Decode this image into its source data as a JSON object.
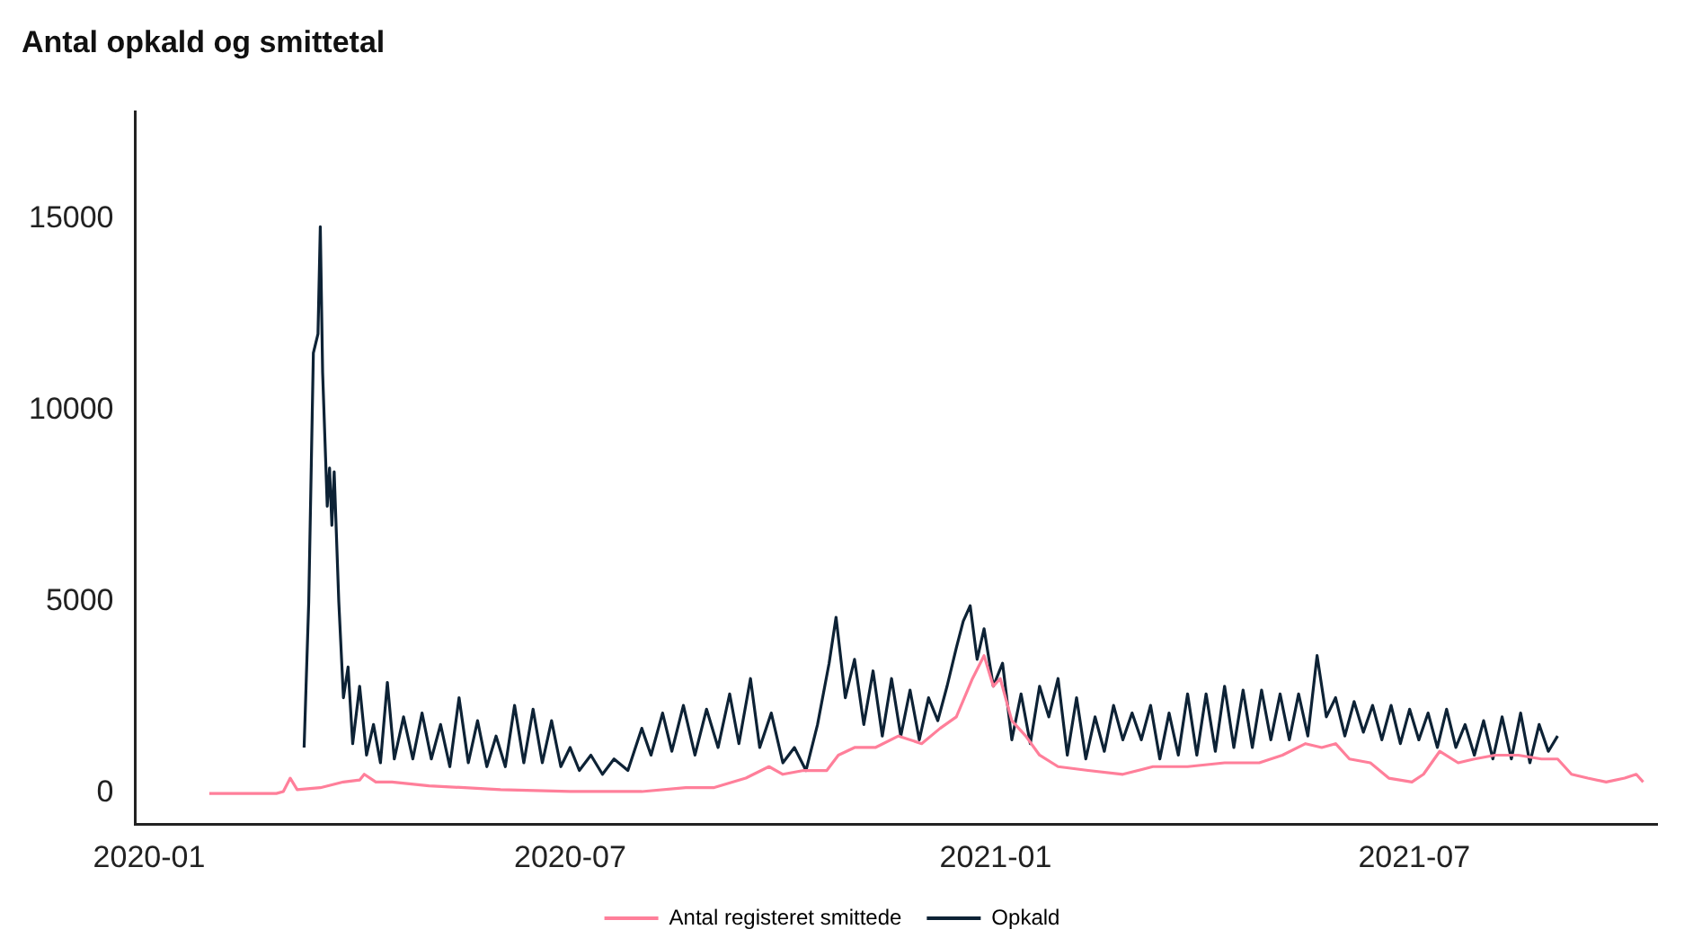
{
  "chart_data": {
    "type": "line",
    "title": "Antal opkald og smittetal",
    "legend": "bottom",
    "grid": false,
    "marker": "none",
    "line_style": "solid",
    "xlim": [
      "2019-12-26",
      "2021-10-14"
    ],
    "xticks": [
      {
        "value": "2020-01-01",
        "label": "2020-01"
      },
      {
        "value": "2020-07-01",
        "label": "2020-07"
      },
      {
        "value": "2021-01-01",
        "label": "2021-01"
      },
      {
        "value": "2021-07-01",
        "label": "2021-07"
      }
    ],
    "ylim": [
      -800,
      17800
    ],
    "yticks": [
      0,
      5000,
      10000,
      15000
    ],
    "series": [
      {
        "name": "Antal registeret smittede",
        "color": "#ff7f9a",
        "x": [
          "2020-01-27",
          "2020-02-25",
          "2020-02-28",
          "2020-03-02",
          "2020-03-05",
          "2020-03-15",
          "2020-03-25",
          "2020-04-01",
          "2020-04-03",
          "2020-04-08",
          "2020-04-15",
          "2020-05-01",
          "2020-06-01",
          "2020-07-01",
          "2020-08-01",
          "2020-08-20",
          "2020-09-01",
          "2020-09-15",
          "2020-09-25",
          "2020-10-01",
          "2020-10-10",
          "2020-10-20",
          "2020-10-25",
          "2020-11-01",
          "2020-11-10",
          "2020-11-20",
          "2020-11-30",
          "2020-12-08",
          "2020-12-15",
          "2020-12-22",
          "2020-12-27",
          "2020-12-31",
          "2021-01-03",
          "2021-01-08",
          "2021-01-14",
          "2021-01-20",
          "2021-01-28",
          "2021-02-10",
          "2021-02-25",
          "2021-03-10",
          "2021-03-25",
          "2021-04-10",
          "2021-04-25",
          "2021-05-05",
          "2021-05-15",
          "2021-05-22",
          "2021-05-28",
          "2021-06-03",
          "2021-06-12",
          "2021-06-20",
          "2021-06-30",
          "2021-07-05",
          "2021-07-12",
          "2021-07-20",
          "2021-07-27",
          "2021-08-05",
          "2021-08-15",
          "2021-08-25",
          "2021-09-01",
          "2021-09-07",
          "2021-09-14",
          "2021-09-22",
          "2021-09-30",
          "2021-10-05",
          "2021-10-08"
        ],
        "values": [
          0,
          0,
          50,
          400,
          100,
          150,
          300,
          350,
          500,
          300,
          300,
          200,
          100,
          50,
          50,
          150,
          150,
          400,
          700,
          500,
          600,
          600,
          1000,
          1200,
          1200,
          1500,
          1300,
          1700,
          2000,
          3000,
          3600,
          2800,
          3000,
          1900,
          1500,
          1000,
          700,
          600,
          500,
          700,
          700,
          800,
          800,
          1000,
          1300,
          1200,
          1300,
          900,
          800,
          400,
          300,
          500,
          1100,
          800,
          900,
          1000,
          1000,
          900,
          900,
          500,
          400,
          300,
          400,
          500,
          300
        ]
      },
      {
        "name": "Opkald",
        "color": "#0d2235",
        "x": [
          "2020-03-08",
          "2020-03-10",
          "2020-03-12",
          "2020-03-14",
          "2020-03-15",
          "2020-03-16",
          "2020-03-18",
          "2020-03-19",
          "2020-03-20",
          "2020-03-21",
          "2020-03-23",
          "2020-03-25",
          "2020-03-27",
          "2020-03-29",
          "2020-04-01",
          "2020-04-04",
          "2020-04-07",
          "2020-04-10",
          "2020-04-13",
          "2020-04-16",
          "2020-04-20",
          "2020-04-24",
          "2020-04-28",
          "2020-05-02",
          "2020-05-06",
          "2020-05-10",
          "2020-05-14",
          "2020-05-18",
          "2020-05-22",
          "2020-05-26",
          "2020-05-30",
          "2020-06-03",
          "2020-06-07",
          "2020-06-11",
          "2020-06-15",
          "2020-06-19",
          "2020-06-23",
          "2020-06-27",
          "2020-07-01",
          "2020-07-05",
          "2020-07-10",
          "2020-07-15",
          "2020-07-20",
          "2020-07-26",
          "2020-08-01",
          "2020-08-05",
          "2020-08-10",
          "2020-08-14",
          "2020-08-19",
          "2020-08-24",
          "2020-08-29",
          "2020-09-03",
          "2020-09-08",
          "2020-09-12",
          "2020-09-17",
          "2020-09-21",
          "2020-09-26",
          "2020-10-01",
          "2020-10-06",
          "2020-10-11",
          "2020-10-16",
          "2020-10-21",
          "2020-10-24",
          "2020-10-28",
          "2020-11-01",
          "2020-11-05",
          "2020-11-09",
          "2020-11-13",
          "2020-11-17",
          "2020-11-21",
          "2020-11-25",
          "2020-11-29",
          "2020-12-03",
          "2020-12-07",
          "2020-12-11",
          "2020-12-15",
          "2020-12-18",
          "2020-12-21",
          "2020-12-24",
          "2020-12-27",
          "2020-12-31",
          "2021-01-04",
          "2021-01-08",
          "2021-01-12",
          "2021-01-16",
          "2021-01-20",
          "2021-01-24",
          "2021-01-28",
          "2021-02-01",
          "2021-02-05",
          "2021-02-09",
          "2021-02-13",
          "2021-02-17",
          "2021-02-21",
          "2021-02-25",
          "2021-03-01",
          "2021-03-05",
          "2021-03-09",
          "2021-03-13",
          "2021-03-17",
          "2021-03-21",
          "2021-03-25",
          "2021-03-29",
          "2021-04-02",
          "2021-04-06",
          "2021-04-10",
          "2021-04-14",
          "2021-04-18",
          "2021-04-22",
          "2021-04-26",
          "2021-04-30",
          "2021-05-04",
          "2021-05-08",
          "2021-05-12",
          "2021-05-16",
          "2021-05-20",
          "2021-05-24",
          "2021-05-28",
          "2021-06-01",
          "2021-06-05",
          "2021-06-09",
          "2021-06-13",
          "2021-06-17",
          "2021-06-21",
          "2021-06-25",
          "2021-06-29",
          "2021-07-03",
          "2021-07-07",
          "2021-07-11",
          "2021-07-15",
          "2021-07-19",
          "2021-07-23",
          "2021-07-27",
          "2021-07-31",
          "2021-08-04",
          "2021-08-08",
          "2021-08-12",
          "2021-08-16",
          "2021-08-20",
          "2021-08-24",
          "2021-08-28",
          "2021-09-01"
        ],
        "values": [
          1200,
          5000,
          11500,
          12000,
          14800,
          11000,
          7500,
          8500,
          7000,
          8400,
          5000,
          2500,
          3300,
          1300,
          2800,
          1000,
          1800,
          800,
          2900,
          900,
          2000,
          900,
          2100,
          900,
          1800,
          700,
          2500,
          800,
          1900,
          700,
          1500,
          700,
          2300,
          800,
          2200,
          800,
          1900,
          700,
          1200,
          600,
          1000,
          500,
          900,
          600,
          1700,
          1000,
          2100,
          1100,
          2300,
          1000,
          2200,
          1200,
          2600,
          1300,
          3000,
          1200,
          2100,
          800,
          1200,
          600,
          1800,
          3400,
          4600,
          2500,
          3500,
          1800,
          3200,
          1500,
          3000,
          1500,
          2700,
          1400,
          2500,
          1900,
          2800,
          3800,
          4500,
          4900,
          3500,
          4300,
          2800,
          3400,
          1400,
          2600,
          1300,
          2800,
          2000,
          3000,
          1000,
          2500,
          900,
          2000,
          1100,
          2300,
          1400,
          2100,
          1400,
          2300,
          900,
          2100,
          1000,
          2600,
          1000,
          2600,
          1100,
          2800,
          1200,
          2700,
          1200,
          2700,
          1400,
          2600,
          1400,
          2600,
          1500,
          3600,
          2000,
          2500,
          1500,
          2400,
          1600,
          2300,
          1400,
          2300,
          1300,
          2200,
          1400,
          2100,
          1200,
          2200,
          1200,
          1800,
          1000,
          1900,
          900,
          2000,
          900,
          2100,
          800,
          1800,
          1100,
          1500
        ]
      }
    ]
  }
}
